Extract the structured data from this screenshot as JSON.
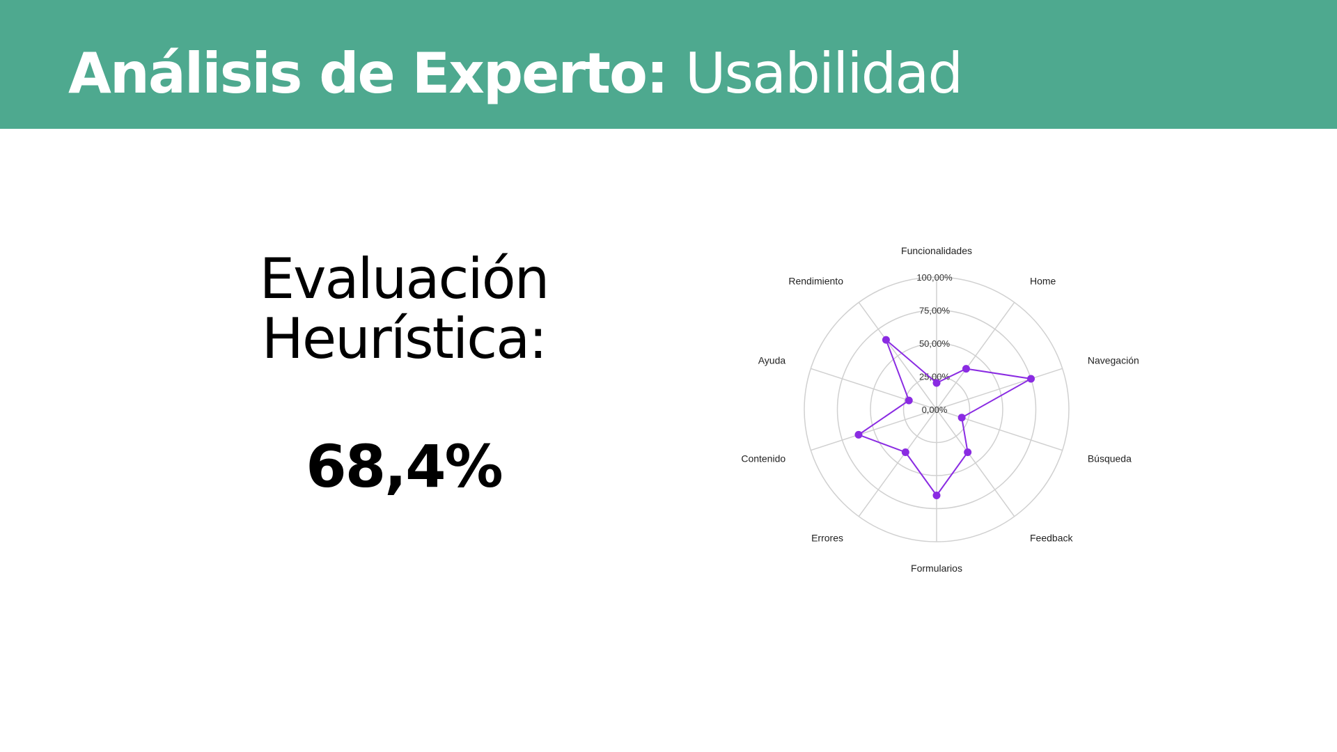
{
  "header": {
    "title_bold": "Análisis de Experto:",
    "title_light": "Usabilidad",
    "background_color": "#4EA98F"
  },
  "evaluation": {
    "label_line1": "Evaluación",
    "label_line2": "Heurística:",
    "value": "68,4%"
  },
  "chart_data": {
    "type": "radar",
    "title": "",
    "categories": [
      "Funcionalidades",
      "Home",
      "Navegación",
      "Búsqueda",
      "Feedback",
      "Formularios",
      "Errores",
      "Contenido",
      "Ayuda",
      "Rendimiento"
    ],
    "radial_ticks": [
      "0,00%",
      "25,00%",
      "50,00%",
      "75,00%",
      "100,00%"
    ],
    "rlim": [
      0,
      100
    ],
    "grid": true,
    "legend": "none",
    "series": [
      {
        "values": [
          20,
          38,
          75,
          20,
          40,
          65,
          40,
          62,
          22,
          65
        ],
        "color": "#8A2BE2"
      }
    ]
  }
}
